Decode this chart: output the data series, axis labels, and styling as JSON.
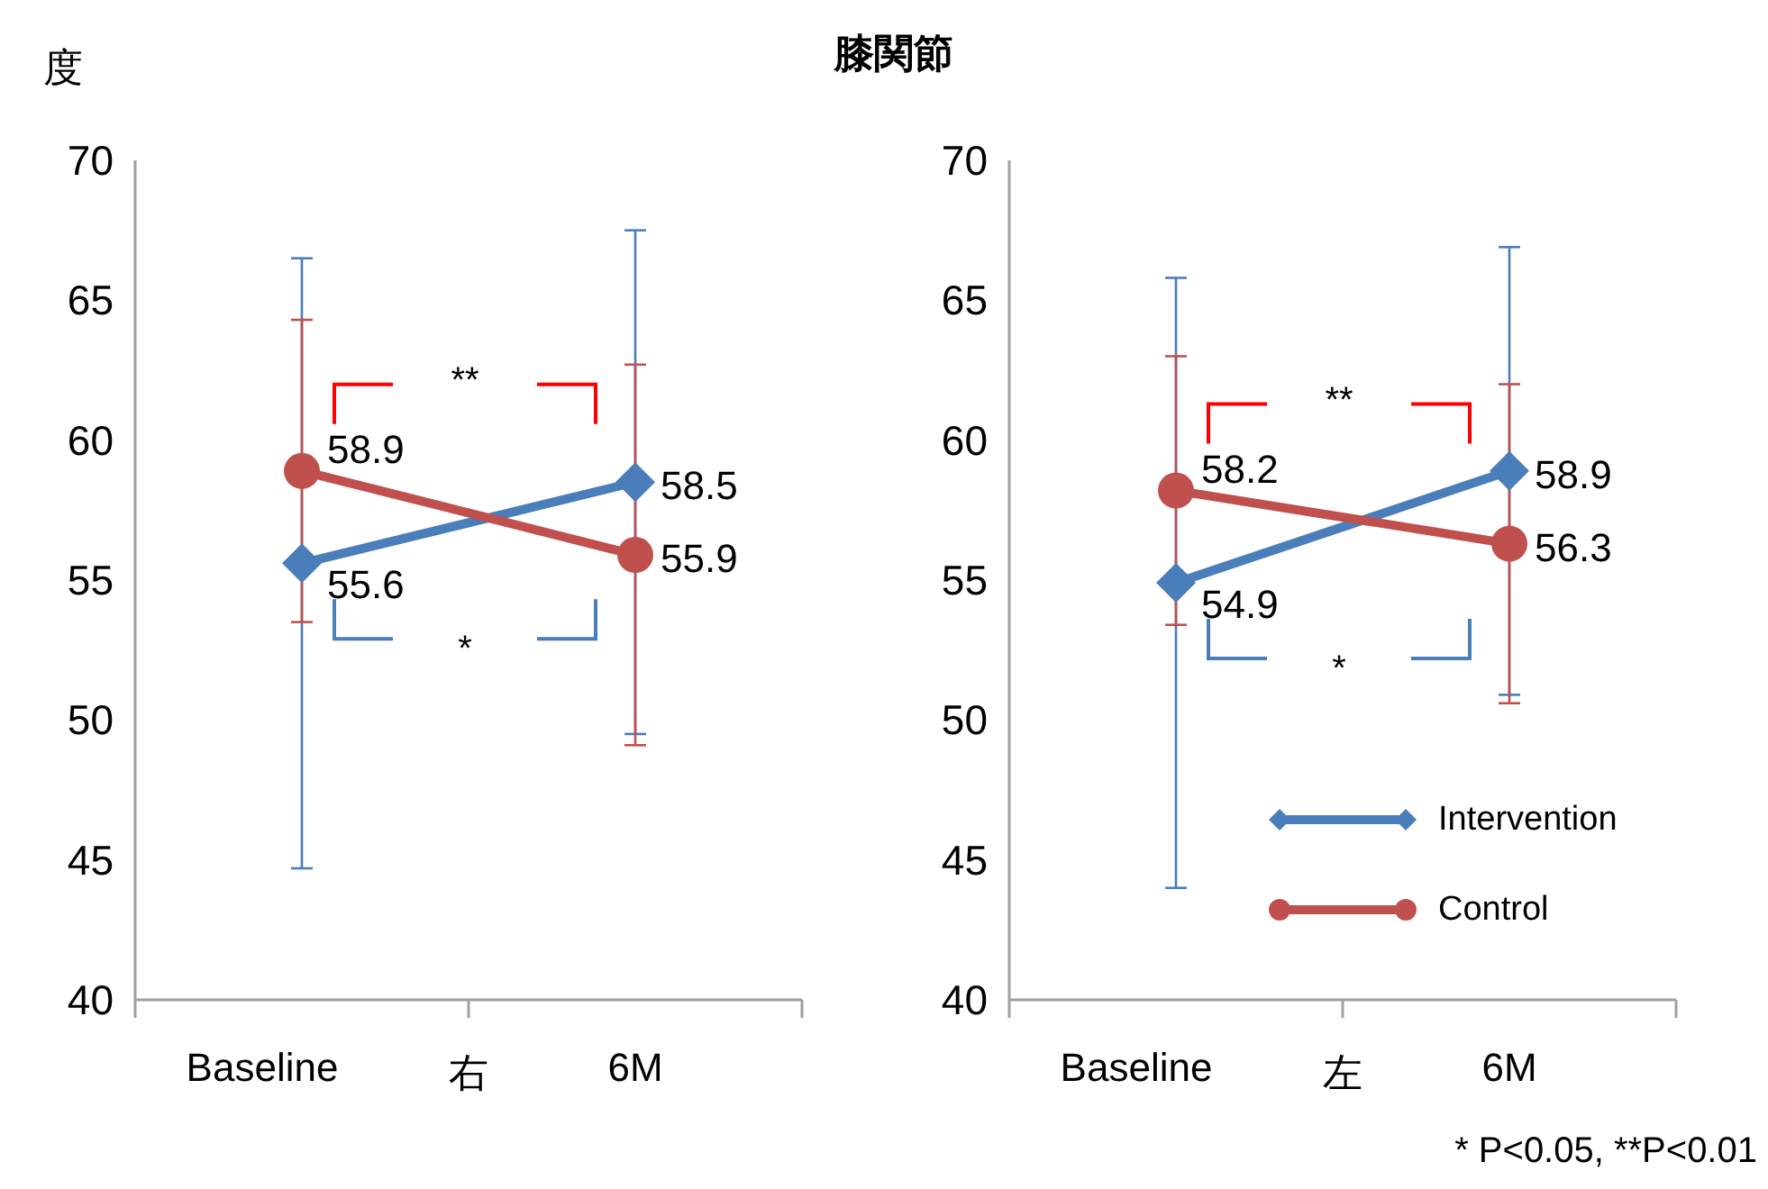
{
  "chart_data": [
    {
      "type": "line",
      "ylabel": "度",
      "xlabel": "右",
      "categories": [
        "Baseline",
        "6M"
      ],
      "ylim": [
        40,
        70
      ],
      "yticks": [
        40,
        45,
        50,
        55,
        60,
        65,
        70
      ],
      "grid": false,
      "legend": false,
      "data_labels": true,
      "series": [
        {
          "color": "#4a7ebb",
          "marker": "diamond",
          "values": [
            55.6,
            58.5
          ],
          "errors": [
            10.9,
            9.0
          ]
        },
        {
          "color": "#c0504d",
          "marker": "circle",
          "values": [
            58.9,
            55.9
          ],
          "errors": [
            5.4,
            6.8
          ]
        }
      ],
      "annotations": [
        "*",
        "**"
      ]
    },
    {
      "type": "line",
      "title": "膝関節",
      "xlabel": "左",
      "categories": [
        "Baseline",
        "6M"
      ],
      "ylim": [
        40,
        70
      ],
      "yticks": [
        40,
        45,
        50,
        55,
        60,
        65,
        70
      ],
      "grid": false,
      "legend": "bottom right",
      "data_labels": true,
      "series": [
        {
          "name": "Intervention",
          "color": "#4a7ebb",
          "marker": "diamond",
          "values": [
            54.9,
            58.9
          ],
          "errors": [
            10.9,
            8.0
          ]
        },
        {
          "name": "Control",
          "color": "#c0504d",
          "marker": "circle",
          "values": [
            58.2,
            56.3
          ],
          "errors": [
            4.8,
            5.7
          ]
        }
      ],
      "annotations": [
        "*",
        "**",
        "* P<0.05, **P<0.01"
      ]
    }
  ]
}
